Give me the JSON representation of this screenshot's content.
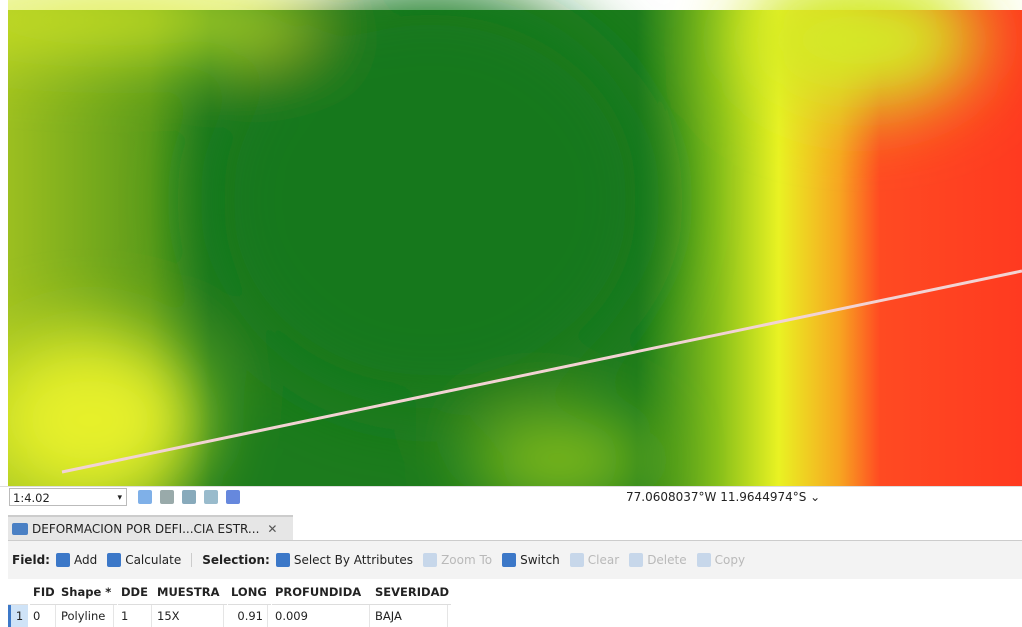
{
  "status_bar": {
    "scale": "1:4.02",
    "coordinates": "77.0608037°W 11.9644974°S"
  },
  "tab": {
    "title": "DEFORMACION POR DEFI...CIA ESTR..."
  },
  "toolbar": {
    "field_label": "Field:",
    "field_buttons": [
      "Add",
      "Calculate"
    ],
    "selection_label": "Selection:",
    "selection_buttons": [
      "Select By Attributes",
      "Zoom To",
      "Switch",
      "Clear",
      "Delete",
      "Copy"
    ]
  },
  "table": {
    "columns": [
      "FID",
      "Shape *",
      "DDE",
      "MUESTRA",
      "LONG",
      "PROFUNDIDA",
      "SEVERIDAD"
    ],
    "row_labels": [
      "1"
    ],
    "rows": [
      [
        "0",
        "Polyline",
        "1",
        "15X",
        "0.91",
        "0.009",
        "BAJA"
      ]
    ]
  }
}
